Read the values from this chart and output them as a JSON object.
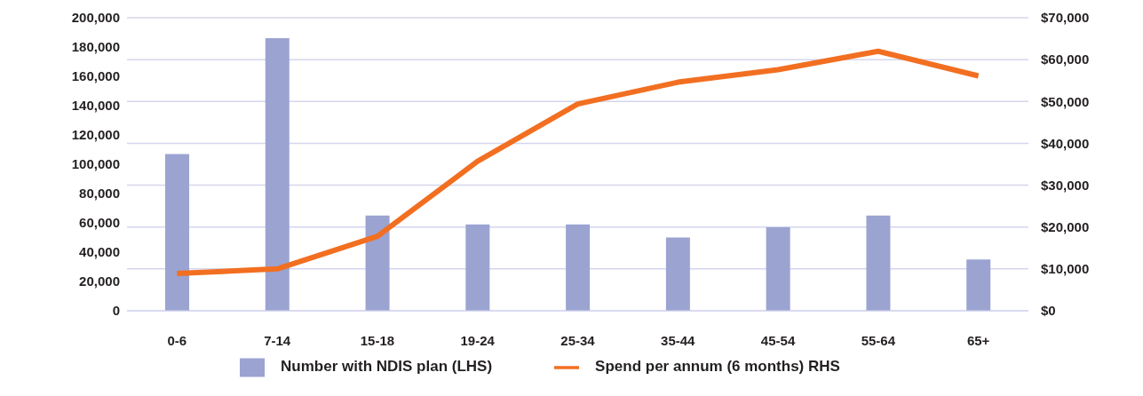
{
  "chart_data": {
    "type": "bar",
    "categories": [
      "0-6",
      "7-14",
      "15-18",
      "19-24",
      "25-34",
      "35-44",
      "45-54",
      "55-64",
      "65+"
    ],
    "series": [
      {
        "name": "Number with NDIS plan (LHS)",
        "color": "#9ba3d1",
        "values": [
          107000,
          186000,
          65000,
          59000,
          59000,
          50000,
          57000,
          65000,
          35000
        ]
      },
      {
        "name": "Spend per annum (6 months) RHS",
        "type": "line",
        "axis": "y2",
        "color": "#f26f21",
        "values": [
          8900,
          10000,
          17800,
          35700,
          49400,
          54600,
          57600,
          62000,
          56100
        ]
      }
    ],
    "ylim": [
      0,
      200000
    ],
    "yticks": [
      {
        "value": 0,
        "label": "0"
      },
      {
        "value": 20000,
        "label": "20,000"
      },
      {
        "value": 40000,
        "label": "40,000"
      },
      {
        "value": 60000,
        "label": "60,000"
      },
      {
        "value": 80000,
        "label": "80,000"
      },
      {
        "value": 100000,
        "label": "100,000"
      },
      {
        "value": 120000,
        "label": "120,000"
      },
      {
        "value": 140000,
        "label": "140,000"
      },
      {
        "value": 160000,
        "label": "160,000"
      },
      {
        "value": 180000,
        "label": "180,000"
      },
      {
        "value": 200000,
        "label": "200,000"
      }
    ],
    "y2lim": [
      0,
      70000
    ],
    "y2ticks": [
      {
        "value": 0,
        "label": "$0"
      },
      {
        "value": 10000,
        "label": "$10,000"
      },
      {
        "value": 20000,
        "label": "$20,000"
      },
      {
        "value": 30000,
        "label": "$30,000"
      },
      {
        "value": 40000,
        "label": "$40,000"
      },
      {
        "value": 50000,
        "label": "$50,000"
      },
      {
        "value": 60000,
        "label": "$60,000"
      },
      {
        "value": 70000,
        "label": "$70,000"
      }
    ],
    "grid": "y2",
    "legend": "bottom",
    "marker": "none",
    "line_style": "solid"
  }
}
